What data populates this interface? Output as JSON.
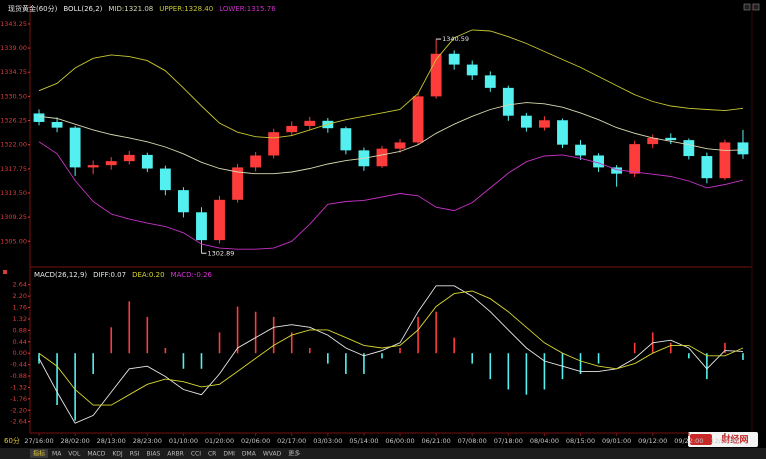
{
  "chart_data": [
    {
      "type": "candlestick",
      "title": "现货黄金(60分)",
      "indicator": "BOLL(26,2)",
      "up_color": "#ff3c3c",
      "down_color": "#54f0f0",
      "grid": false,
      "ylim": [
        1301,
        1345
      ],
      "yticks": [
        1343.25,
        {
          "value": 1339,
          "label": "1339.00"
        },
        1334.75,
        {
          "value": 1330.5,
          "label": "1330.50"
        },
        1326.25,
        {
          "value": 1322,
          "label": "1322.00"
        },
        1317.75,
        {
          "value": 1313.5,
          "label": "1313.50"
        },
        1309.25,
        {
          "value": 1305,
          "label": "1305.00"
        }
      ],
      "open": [
        1327.5,
        1326.0,
        1325.0,
        1318.0,
        1318.4,
        1319.1,
        1320.2,
        1317.8,
        1314.0,
        1310.1,
        1305.2,
        1312.3,
        1318.0,
        1320.1,
        1324.2,
        1325.3,
        1326.2,
        1324.9,
        1321.0,
        1318.2,
        1321.3,
        1322.4,
        1330.5,
        1338.0,
        1336.1,
        1334.2,
        1332.0,
        1327.1,
        1325.0,
        1326.3,
        1322.0,
        1320.1,
        1318.0,
        1316.9,
        1322.1,
        1323.2,
        1322.8,
        1320.0,
        1316.1,
        1322.4
      ],
      "high": [
        1328.2,
        1326.8,
        1325.3,
        1319.2,
        1319.8,
        1320.9,
        1320.6,
        1318.3,
        1314.5,
        1311.0,
        1313.0,
        1318.6,
        1320.7,
        1324.8,
        1326.1,
        1326.9,
        1326.7,
        1325.2,
        1321.5,
        1321.8,
        1323.0,
        1331.2,
        1340.59,
        1338.6,
        1336.8,
        1334.9,
        1332.4,
        1327.6,
        1327.0,
        1326.6,
        1322.8,
        1320.5,
        1318.4,
        1322.7,
        1323.8,
        1324.0,
        1323.1,
        1320.6,
        1322.9,
        1324.6
      ],
      "low": [
        1325.4,
        1324.2,
        1316.5,
        1316.8,
        1317.6,
        1318.5,
        1317.2,
        1313.1,
        1309.2,
        1302.89,
        1304.6,
        1311.8,
        1317.3,
        1319.6,
        1323.5,
        1324.6,
        1324.1,
        1320.3,
        1317.4,
        1317.9,
        1320.6,
        1322.0,
        1330.1,
        1335.2,
        1333.4,
        1331.3,
        1326.2,
        1324.3,
        1324.5,
        1321.4,
        1319.3,
        1317.2,
        1314.6,
        1316.3,
        1321.4,
        1322.1,
        1319.4,
        1315.2,
        1315.8,
        1319.5
      ],
      "close": [
        1326.0,
        1325.0,
        1318.0,
        1318.4,
        1319.1,
        1320.2,
        1317.8,
        1314.0,
        1310.1,
        1305.2,
        1312.3,
        1318.0,
        1320.1,
        1324.2,
        1325.3,
        1326.2,
        1324.9,
        1321.0,
        1318.2,
        1321.3,
        1322.4,
        1330.5,
        1338.0,
        1336.1,
        1334.2,
        1332.0,
        1327.1,
        1325.0,
        1326.3,
        1322.0,
        1320.1,
        1318.0,
        1316.9,
        1322.1,
        1323.2,
        1322.8,
        1320.0,
        1316.1,
        1322.4,
        1320.3
      ],
      "series": [
        {
          "name": "MID:1321.08",
          "color": "#d8d8b0",
          "values": [
            1327.0,
            1326.6,
            1325.6,
            1324.6,
            1323.8,
            1323.2,
            1322.5,
            1321.6,
            1320.4,
            1318.9,
            1317.8,
            1317.2,
            1316.9,
            1316.9,
            1317.2,
            1317.8,
            1318.6,
            1319.2,
            1319.6,
            1320.2,
            1320.8,
            1322.0,
            1324.0,
            1325.6,
            1327.0,
            1328.2,
            1329.0,
            1329.4,
            1329.2,
            1328.6,
            1327.6,
            1326.4,
            1325.0,
            1324.0,
            1323.2,
            1322.6,
            1322.0,
            1321.3,
            1321.0,
            1321.08
          ]
        },
        {
          "name": "UPPER:1328.40",
          "color": "#c8c832",
          "values": [
            1331.5,
            1332.8,
            1335.5,
            1337.2,
            1337.8,
            1337.5,
            1336.8,
            1335.0,
            1332.0,
            1328.8,
            1325.8,
            1324.2,
            1323.4,
            1323.2,
            1323.6,
            1324.6,
            1325.6,
            1326.4,
            1327.0,
            1327.6,
            1328.2,
            1331.0,
            1337.0,
            1340.8,
            1342.2,
            1342.0,
            1341.0,
            1339.8,
            1338.4,
            1337.0,
            1335.6,
            1334.0,
            1332.4,
            1330.8,
            1329.6,
            1328.8,
            1328.4,
            1328.2,
            1328.0,
            1328.4
          ]
        },
        {
          "name": "LOWER:1315.76",
          "color": "#c832c8",
          "values": [
            1322.5,
            1320.4,
            1315.7,
            1312.0,
            1309.8,
            1308.9,
            1308.2,
            1307.6,
            1306.5,
            1304.5,
            1303.8,
            1303.6,
            1303.6,
            1303.8,
            1305.0,
            1308.0,
            1311.5,
            1312.0,
            1312.2,
            1312.8,
            1313.4,
            1313.0,
            1311.0,
            1310.4,
            1311.8,
            1314.4,
            1317.0,
            1319.0,
            1320.0,
            1320.2,
            1319.6,
            1318.8,
            1317.6,
            1317.2,
            1316.8,
            1316.4,
            1315.6,
            1314.4,
            1315.0,
            1315.76
          ]
        }
      ]
    },
    {
      "type": "combo",
      "indicator": "MACD(26,12,9)",
      "grid": false,
      "ylim": [
        -3.0,
        2.9
      ],
      "yticks": [
        2.64,
        {
          "value": 2.2,
          "label": "2.20"
        },
        1.76,
        1.32,
        0.88,
        0.44,
        {
          "value": 0,
          "label": "0.00"
        },
        -0.44,
        -0.88,
        -1.32,
        -1.76,
        {
          "value": -2.2,
          "label": "-2.20"
        },
        -2.64
      ],
      "categories": [
        "27/16:00",
        null,
        "28/02:00",
        null,
        "28/13:00",
        null,
        "28/23:00",
        null,
        "01/10:00",
        null,
        "01/20:00",
        null,
        "02/06:00",
        null,
        "02/17:00",
        null,
        "03/03:00",
        null,
        "05/14:00",
        null,
        "06/00:00",
        null,
        "06/21:00",
        null,
        "07/08:00",
        null,
        "07/18:00",
        null,
        "08/04:00",
        null,
        "08/15:00",
        null,
        "09/01:00",
        null,
        "09/12:00",
        null,
        "09/22:00",
        null,
        "12/08:00",
        null
      ],
      "series": [
        {
          "name": "DIFF:0.07",
          "kind": "line",
          "color": "#e8e8e8",
          "values": [
            -0.2,
            -1.5,
            -2.7,
            -2.4,
            -1.5,
            -0.6,
            -0.5,
            -0.9,
            -1.4,
            -1.6,
            -0.8,
            0.2,
            0.6,
            1.0,
            1.1,
            1.0,
            0.7,
            0.2,
            -0.1,
            0.1,
            0.4,
            1.6,
            2.6,
            2.6,
            2.2,
            1.6,
            0.9,
            0.2,
            -0.3,
            -0.5,
            -0.7,
            -0.7,
            -0.6,
            -0.2,
            0.4,
            0.5,
            0.2,
            -0.6,
            0.1,
            0.07
          ]
        },
        {
          "name": "DEA:0.20",
          "kind": "line",
          "color": "#d8d832",
          "values": [
            0.0,
            -0.5,
            -1.4,
            -2.0,
            -2.0,
            -1.6,
            -1.2,
            -1.0,
            -1.1,
            -1.3,
            -1.2,
            -0.7,
            -0.2,
            0.3,
            0.7,
            0.9,
            0.9,
            0.6,
            0.3,
            0.2,
            0.3,
            0.9,
            1.8,
            2.3,
            2.4,
            2.1,
            1.6,
            1.0,
            0.4,
            0.0,
            -0.3,
            -0.5,
            -0.6,
            -0.4,
            0.0,
            0.3,
            0.3,
            -0.1,
            -0.1,
            0.2
          ]
        },
        {
          "name": "MACD:-0.26",
          "kind": "bar",
          "color": "#d832d8",
          "up_color": "#ff3c3c",
          "down_color": "#54f0f0",
          "values": [
            -0.4,
            -2.0,
            -2.6,
            -0.8,
            1.0,
            2.0,
            1.4,
            0.2,
            -0.6,
            -0.6,
            0.8,
            1.8,
            1.6,
            1.4,
            0.8,
            0.2,
            -0.4,
            -0.8,
            -0.8,
            -0.2,
            0.2,
            1.4,
            1.6,
            0.6,
            -0.4,
            -1.0,
            -1.4,
            -1.6,
            -1.4,
            -1.0,
            -0.8,
            -0.4,
            0.0,
            0.4,
            0.8,
            0.4,
            -0.2,
            -1.0,
            0.4,
            -0.26
          ]
        }
      ]
    }
  ],
  "toolbar": {
    "period": "60分",
    "tabs": [
      "指标",
      "MA",
      "VOL",
      "MACD",
      "KDJ",
      "RSI",
      "BIAS",
      "ARBR",
      "CCI",
      "CR",
      "DMI",
      "DMA",
      "WVAD",
      "更多"
    ]
  },
  "watermark": "财经网"
}
